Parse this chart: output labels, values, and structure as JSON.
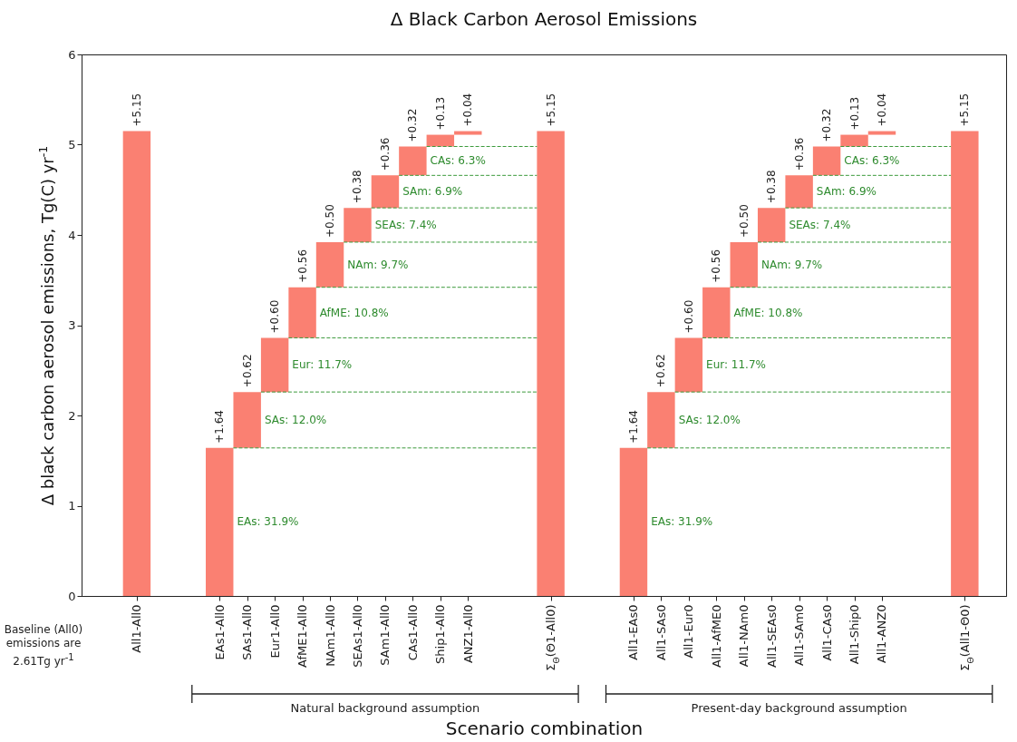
{
  "chart_data": {
    "type": "bar",
    "title": "Δ Black Carbon Aerosol Emissions",
    "xlabel": "Scenario combination",
    "ylabel": "Δ black carbon aerosol emissions, Tg(C) yr$^{-1}$",
    "categories": [
      "All1-All0",
      null,
      null,
      "EAs1-All0",
      "SAs1-All0",
      "Eur1-All0",
      "AfME1-All0",
      "NAm1-All0",
      "SEAs1-All0",
      "SAm1-All0",
      "CAs1-All0",
      "Ship1-All0",
      "ANZ1-All0",
      null,
      null,
      "Σ$_{Θ}$(Θ1-All0)",
      null,
      null,
      "All1-EAs0",
      "All1-SAs0",
      "All1-Eur0",
      "All1-AfME0",
      "All1-NAm0",
      "All1-SEAs0",
      "All1-SAm0",
      "All1-CAs0",
      "All1-Ship0",
      "All1-ANZ0",
      null,
      null,
      "Σ$_{Θ}$(All1-Θ0)"
    ],
    "values": [
      5.15,
      null,
      null,
      1.64,
      0.62,
      0.6,
      0.56,
      0.5,
      0.38,
      0.36,
      0.32,
      0.13,
      0.04,
      null,
      null,
      5.15,
      null,
      null,
      1.64,
      0.62,
      0.6,
      0.56,
      0.5,
      0.38,
      0.36,
      0.32,
      0.13,
      0.04,
      null,
      null,
      5.15
    ],
    "base": [
      0,
      null,
      null,
      0,
      1.64,
      2.26,
      2.86,
      3.42,
      3.92,
      4.3,
      4.66,
      4.98,
      5.11,
      null,
      null,
      0,
      null,
      null,
      0,
      1.64,
      2.26,
      2.86,
      3.42,
      3.92,
      4.3,
      4.66,
      4.98,
      5.11,
      null,
      null,
      0
    ],
    "value_labels": [
      "+5.15",
      null,
      null,
      "+1.64",
      "+0.62",
      "+0.60",
      "+0.56",
      "+0.50",
      "+0.38",
      "+0.36",
      "+0.32",
      "+0.13",
      "+0.04",
      null,
      null,
      "+5.15",
      null,
      null,
      "+1.64",
      "+0.62",
      "+0.60",
      "+0.56",
      "+0.50",
      "+0.38",
      "+0.36",
      "+0.32",
      "+0.13",
      "+0.04",
      null,
      null,
      "+5.15"
    ],
    "color": "#fa8072",
    "ylim": [
      0,
      6
    ],
    "yticks": [
      0,
      1,
      2,
      3,
      4,
      5,
      6
    ],
    "ref_lines": [
      {
        "axis": "y",
        "value": 1.64,
        "color": "#3c9a3c",
        "line_style": "dashed"
      },
      {
        "axis": "y",
        "value": 2.26,
        "color": "#3c9a3c",
        "line_style": "dashed"
      },
      {
        "axis": "y",
        "value": 2.86,
        "color": "#3c9a3c",
        "line_style": "dashed"
      },
      {
        "axis": "y",
        "value": 3.42,
        "color": "#3c9a3c",
        "line_style": "dashed"
      },
      {
        "axis": "y",
        "value": 3.92,
        "color": "#3c9a3c",
        "line_style": "dashed"
      },
      {
        "axis": "y",
        "value": 4.3,
        "color": "#3c9a3c",
        "line_style": "dashed"
      },
      {
        "axis": "y",
        "value": 4.66,
        "color": "#3c9a3c",
        "line_style": "dashed"
      },
      {
        "axis": "y",
        "value": 4.98,
        "color": "#3c9a3c",
        "line_style": "dashed"
      }
    ],
    "annotations": [
      "Baseline (All0) emissions are 2.61Tg yr$^{-1}$",
      "Natural background assumption",
      "Present-day background assumption",
      "EAs: 31.9%",
      "EAs: 31.9%",
      {
        "text": "SAs: 12.0%",
        "x": "SAs1-All0",
        "y": 2.26
      },
      {
        "text": "Eur: 11.7%",
        "x": "Eur1-All0",
        "y": 2.86
      },
      {
        "text": "AfME: 10.8%",
        "x": "AfME1-All0",
        "y": 3.42
      },
      {
        "text": "NAm: 9.7%",
        "x": "NAm1-All0",
        "y": 3.92
      },
      {
        "text": "SEAs: 7.4%",
        "x": "SEAs1-All0",
        "y": 4.3
      },
      {
        "text": "SAm: 6.9%",
        "x": "SAm1-All0",
        "y": 4.66
      },
      {
        "text": "CAs: 6.3%",
        "x": "CAs1-All0",
        "y": 4.98
      },
      {
        "text": "SAs: 12.0%",
        "x": "All1-SAs0",
        "y": 2.26
      },
      {
        "text": "Eur: 11.7%",
        "x": "All1-Eur0",
        "y": 2.86
      },
      {
        "text": "AfME: 10.8%",
        "x": "All1-AfME0",
        "y": 3.42
      },
      {
        "text": "NAm: 9.7%",
        "x": "All1-NAm0",
        "y": 3.92
      },
      {
        "text": "SEAs: 7.4%",
        "x": "All1-SEAs0",
        "y": 4.3
      },
      {
        "text": "SAm: 6.9%",
        "x": "All1-SAm0",
        "y": 4.66
      },
      {
        "text": "CAs: 6.3%",
        "x": "All1-CAs0",
        "y": 4.98
      }
    ]
  }
}
